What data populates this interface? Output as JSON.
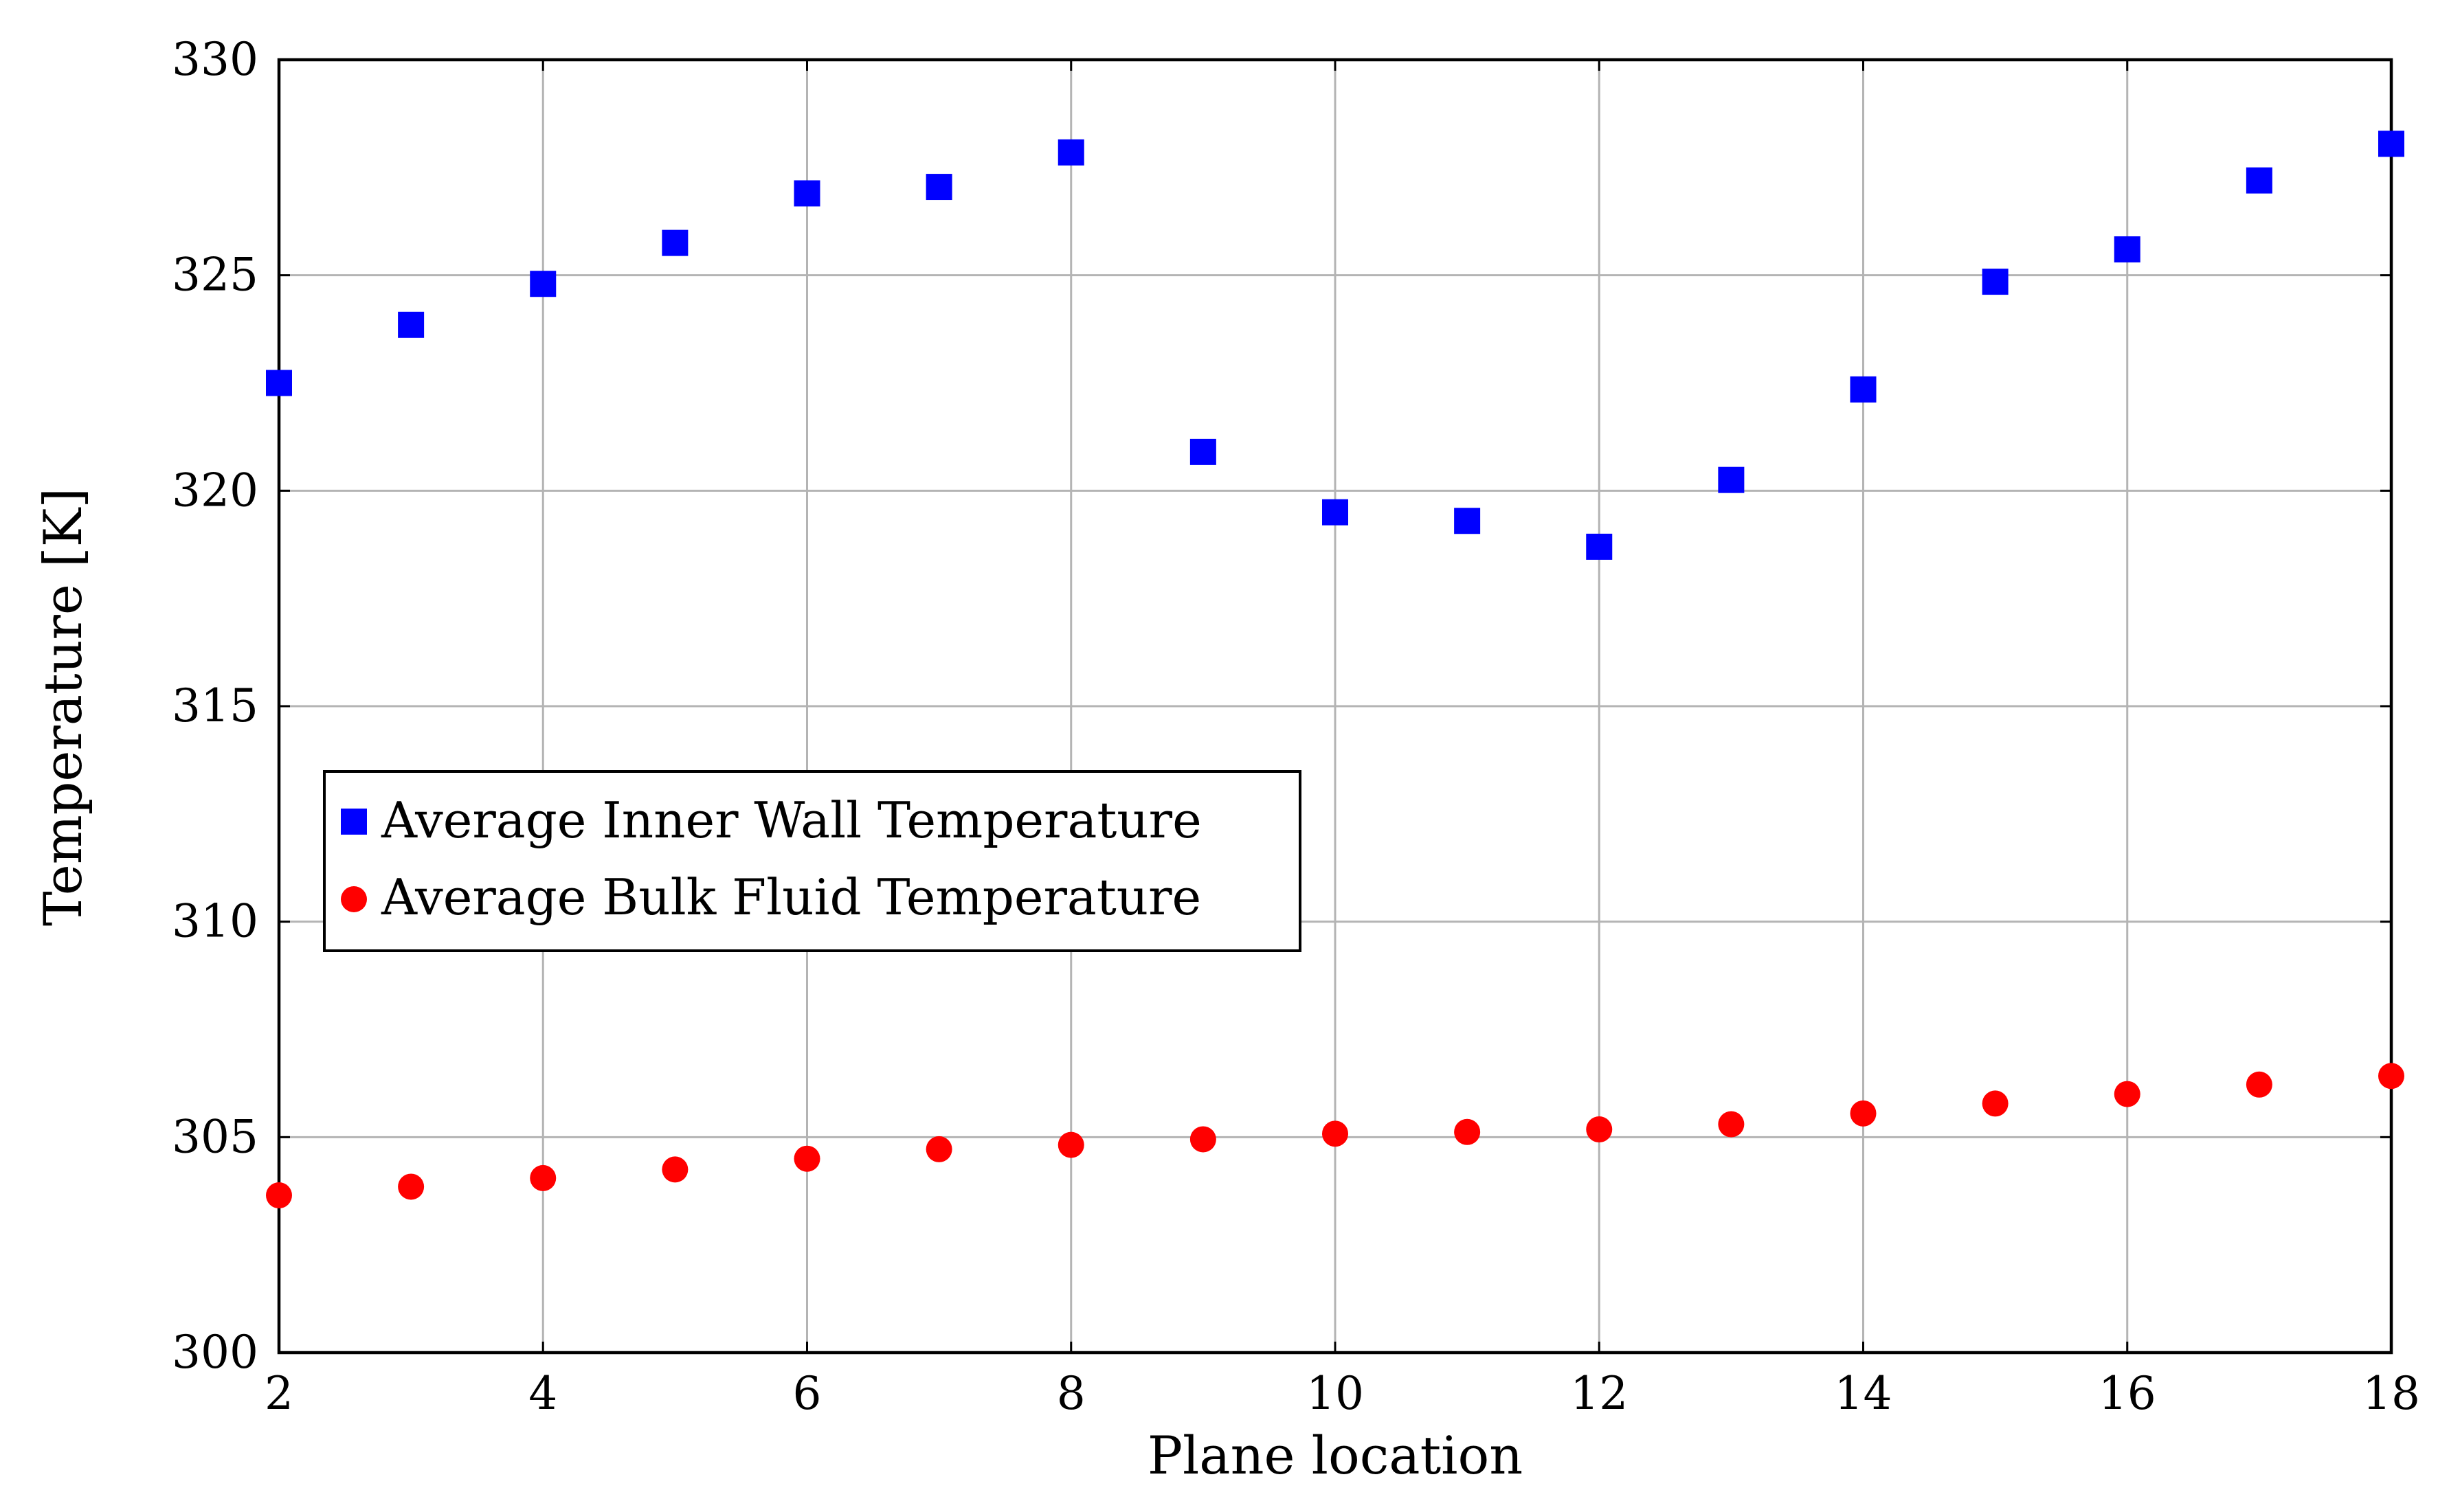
{
  "chart_data": {
    "type": "scatter",
    "title": "",
    "xlabel": "Plane location",
    "ylabel": "Temperature [K]",
    "xlim": [
      2,
      18
    ],
    "ylim": [
      300,
      330
    ],
    "xticks": [
      "2",
      "4",
      "6",
      "8",
      "10",
      "12",
      "14",
      "16",
      "18"
    ],
    "yticks": [
      "300",
      "305",
      "310",
      "315",
      "320",
      "325",
      "330"
    ],
    "grid": true,
    "legend_position": "center-left",
    "x": [
      2,
      3,
      4,
      5,
      6,
      7,
      8,
      9,
      10,
      11,
      12,
      13,
      14,
      15,
      16,
      17,
      18
    ],
    "series": [
      {
        "name": "Average Inner Wall Temperature",
        "marker": "square",
        "color": "#0000ff",
        "values": [
          322.5,
          323.85,
          324.8,
          325.75,
          326.9,
          327.05,
          327.85,
          320.9,
          319.5,
          319.3,
          318.7,
          320.25,
          322.35,
          324.85,
          325.6,
          327.2,
          328.05
        ]
      },
      {
        "name": "Average Bulk Fluid Temperature",
        "marker": "circle",
        "color": "#ff0000",
        "values": [
          303.65,
          303.85,
          304.05,
          304.25,
          304.5,
          304.72,
          304.82,
          304.95,
          305.08,
          305.12,
          305.18,
          305.3,
          305.55,
          305.78,
          306.0,
          306.22,
          306.42
        ]
      }
    ]
  }
}
